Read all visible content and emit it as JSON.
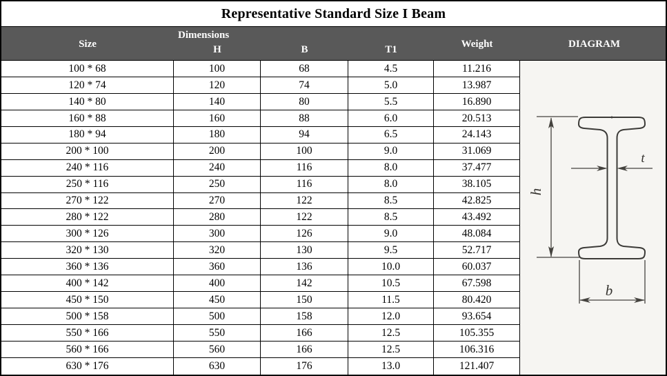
{
  "title": "Representative Standard Size I Beam",
  "table": {
    "headers": {
      "size": "Size",
      "dimensions": "Dimensions",
      "h": "H",
      "b": "B",
      "t1": "T1",
      "weight": "Weight",
      "diagram": "DIAGRAM"
    },
    "rows": [
      {
        "size": "100 * 68",
        "h": "100",
        "b": "68",
        "t1": "4.5",
        "weight": "11.216"
      },
      {
        "size": "120 * 74",
        "h": "120",
        "b": "74",
        "t1": "5.0",
        "weight": "13.987"
      },
      {
        "size": "140 * 80",
        "h": "140",
        "b": "80",
        "t1": "5.5",
        "weight": "16.890"
      },
      {
        "size": "160 * 88",
        "h": "160",
        "b": "88",
        "t1": "6.0",
        "weight": "20.513"
      },
      {
        "size": "180 * 94",
        "h": "180",
        "b": "94",
        "t1": "6.5",
        "weight": "24.143"
      },
      {
        "size": "200 * 100",
        "h": "200",
        "b": "100",
        "t1": "9.0",
        "weight": "31.069"
      },
      {
        "size": "240 * 116",
        "h": "240",
        "b": "116",
        "t1": "8.0",
        "weight": "37.477"
      },
      {
        "size": "250 * 116",
        "h": "250",
        "b": "116",
        "t1": "8.0",
        "weight": "38.105"
      },
      {
        "size": "270 * 122",
        "h": "270",
        "b": "122",
        "t1": "8.5",
        "weight": "42.825"
      },
      {
        "size": "280 * 122",
        "h": "280",
        "b": "122",
        "t1": "8.5",
        "weight": "43.492"
      },
      {
        "size": "300 * 126",
        "h": "300",
        "b": "126",
        "t1": "9.0",
        "weight": "48.084"
      },
      {
        "size": "320 * 130",
        "h": "320",
        "b": "130",
        "t1": "9.5",
        "weight": "52.717"
      },
      {
        "size": "360 * 136",
        "h": "360",
        "b": "136",
        "t1": "10.0",
        "weight": "60.037"
      },
      {
        "size": "400 * 142",
        "h": "400",
        "b": "142",
        "t1": "10.5",
        "weight": "67.598"
      },
      {
        "size": "450 * 150",
        "h": "450",
        "b": "150",
        "t1": "11.5",
        "weight": "80.420"
      },
      {
        "size": "500 * 158",
        "h": "500",
        "b": "158",
        "t1": "12.0",
        "weight": "93.654"
      },
      {
        "size": "550 * 166",
        "h": "550",
        "b": "166",
        "t1": "12.5",
        "weight": "105.355"
      },
      {
        "size": "560 * 166",
        "h": "560",
        "b": "166",
        "t1": "12.5",
        "weight": "106.316"
      },
      {
        "size": "630 * 176",
        "h": "630",
        "b": "176",
        "t1": "13.0",
        "weight": "121.407"
      }
    ]
  },
  "diagram": {
    "labels": {
      "h": "h",
      "t": "t",
      "b": "b"
    }
  },
  "colors": {
    "header_bg": "#595959",
    "header_text": "#ffffff",
    "border": "#000000",
    "diagram_bg": "#f6f5f2",
    "drawing_stroke": "#3b3a37"
  }
}
